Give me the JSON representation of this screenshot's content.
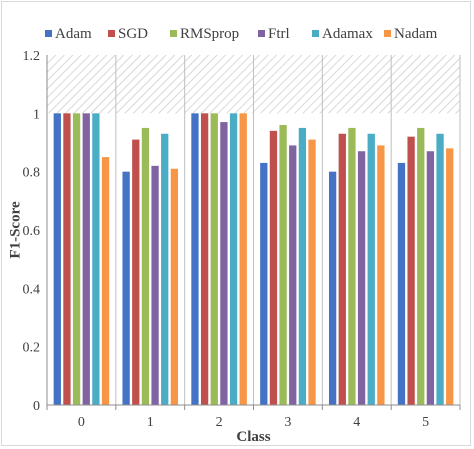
{
  "chart_data": {
    "type": "bar",
    "title": "",
    "xlabel": "Class",
    "ylabel": "F1-Score",
    "categories": [
      "0",
      "1",
      "2",
      "3",
      "4",
      "5"
    ],
    "ylim": [
      0,
      1.2
    ],
    "yticks": [
      "0",
      "0.2",
      "0.4",
      "0.6",
      "0.8",
      "1",
      "1.2"
    ],
    "ytick_values": [
      0,
      0.2,
      0.4,
      0.6,
      0.8,
      1.0,
      1.2
    ],
    "hatched_band": [
      1.0,
      1.2
    ],
    "legend_position": "top",
    "grid": false,
    "series": [
      {
        "name": "Adam",
        "color": "#4472C4",
        "values": [
          1.0,
          0.8,
          1.0,
          0.83,
          0.8,
          0.83
        ]
      },
      {
        "name": "SGD",
        "color": "#C0504D",
        "values": [
          1.0,
          0.91,
          1.0,
          0.94,
          0.93,
          0.92
        ]
      },
      {
        "name": "RMSprop",
        "color": "#9BBB59",
        "values": [
          1.0,
          0.95,
          1.0,
          0.96,
          0.95,
          0.95
        ]
      },
      {
        "name": "Ftrl",
        "color": "#8064A2",
        "values": [
          1.0,
          0.82,
          0.97,
          0.89,
          0.87,
          0.87
        ]
      },
      {
        "name": "Adamax",
        "color": "#4BACC6",
        "values": [
          1.0,
          0.93,
          1.0,
          0.95,
          0.93,
          0.93
        ]
      },
      {
        "name": "Nadam",
        "color": "#F79646",
        "values": [
          0.85,
          0.81,
          1.0,
          0.91,
          0.89,
          0.88
        ]
      }
    ]
  }
}
